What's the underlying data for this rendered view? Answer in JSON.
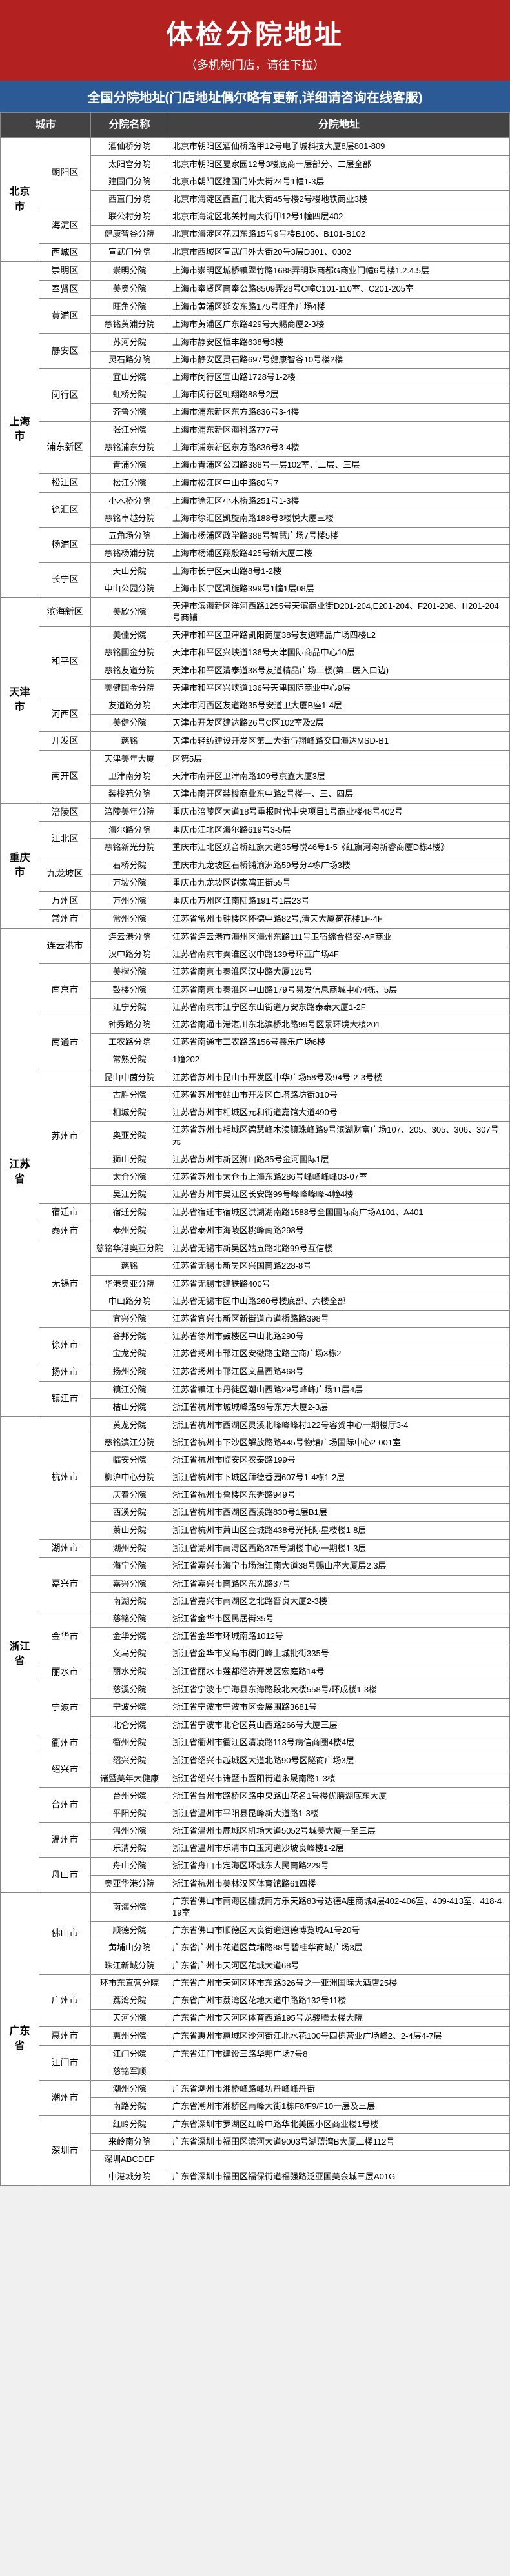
{
  "header": {
    "title": "体检分院地址",
    "subtitle": "（多机构门店，请往下拉）",
    "banner": "全国分院地址(门店地址偶尔略有更新,详细请咨询在线客服)"
  },
  "columns": [
    "城市",
    "分院名称",
    "分院地址"
  ],
  "rows": [
    {
      "prov": "北京市",
      "city": "朝阳区",
      "branch": "酒仙桥分院",
      "addr": "北京市朝阳区酒仙桥路甲12号电子城科技大厦8层801-809"
    },
    {
      "branch": "太阳宫分院",
      "addr": "北京市朝阳区夏家园12号3楼底商一层部分、二层全部"
    },
    {
      "branch": "建国门分院",
      "addr": "北京市朝阳区建国门外大街24号1幢1-3层"
    },
    {
      "branch": "西直门分院",
      "addr": "北京市海淀区西直门北大街45号楼2号楼地铁商业3楼"
    },
    {
      "city": "海淀区",
      "branch": "联公村分院",
      "addr": "北京市海淀区北关村南大街甲12号1幢四层402"
    },
    {
      "branch": "健康智谷分院",
      "addr": "北京市海淀区花园东路15号9号楼B105、B101-B102"
    },
    {
      "city": "西城区",
      "branch": "宣武门分院",
      "addr": "北京市西城区宣武门外大街20号3层D301、0302"
    },
    {
      "prov": "上海市",
      "city": "崇明区",
      "branch": "崇明分院",
      "addr": "上海市崇明区城桥镇翠竹路1688弄明珠商都G商业门幢6号楼1.2.4.5层"
    },
    {
      "city": "奉贤区",
      "branch": "美奥分院",
      "addr": "上海市奉贤区南奉公路8509弄28号C幢C101-110室、C201-205室"
    },
    {
      "city": "黄浦区",
      "branch": "旺角分院",
      "addr": "上海市黄浦区延安东路175号旺角广场4楼"
    },
    {
      "branch": "慈铭黄浦分院",
      "addr": "上海市黄浦区广东路429号天赐商厦2-3楼"
    },
    {
      "city": "静安区",
      "branch": "苏河分院",
      "addr": "上海市静安区恒丰路638号3楼"
    },
    {
      "branch": "灵石路分院",
      "addr": "上海市静安区灵石路697号健康智谷10号楼2楼"
    },
    {
      "city": "闵行区",
      "branch": "宜山分院",
      "addr": "上海市闵行区宜山路1728号1-2楼"
    },
    {
      "branch": "虹桥分院",
      "addr": "上海市闵行区虹翔路88号2层"
    },
    {
      "branch": "齐鲁分院",
      "addr": "上海市浦东新区东方路836号3-4楼"
    },
    {
      "city": "浦东新区",
      "branch": "张江分院",
      "addr": "上海市浦东新区海科路777号"
    },
    {
      "branch": "慈铭浦东分院",
      "addr": "上海市浦东新区东方路836号3-4楼"
    },
    {
      "branch": "青浦分院",
      "addr": "上海市青浦区公园路388号一层102室、二层、三层"
    },
    {
      "city": "松江区",
      "branch": "松江分院",
      "addr": "上海市松江区中山中路80号7"
    },
    {
      "city": "徐汇区",
      "branch": "小木桥分院",
      "addr": "上海市徐汇区小木桥路251号1-3楼"
    },
    {
      "branch": "慈铭卓越分院",
      "addr": "上海市徐汇区凯旋南路188号3楼悦大厦三楼"
    },
    {
      "city": "杨浦区",
      "branch": "五角场分院",
      "addr": "上海市杨浦区政学路388号智慧广场7号楼5楼"
    },
    {
      "branch": "慈铭杨浦分院",
      "addr": "上海市杨浦区翔殷路425号新大厦二楼"
    },
    {
      "city": "长宁区",
      "branch": "天山分院",
      "addr": "上海市长宁区天山路8号1-2楼"
    },
    {
      "branch": "中山公园分院",
      "addr": "上海市长宁区凯旋路399号1幢1层08层"
    },
    {
      "prov": "天津市",
      "city": "滨海新区",
      "branch": "美欣分院",
      "addr": "天津市滨海新区洋河西路1255号天滨商业街D201-204,E201-204、F201-208、H201-204号商铺"
    },
    {
      "city": "和平区",
      "branch": "美佳分院",
      "addr": "天津市和平区卫津路凯阳商厦38号友道精品广场四楼L2"
    },
    {
      "branch": "慈铭国金分院",
      "addr": "天津市和平区兴峡道136号天津国际商品中心10层"
    },
    {
      "branch": "慈铭友道分院",
      "addr": "天津市和平区清泰道38号友道精品广场二楼(第二医入口边)"
    },
    {
      "branch": "美健国金分院",
      "addr": "天津市和平区兴峡道136号天津国际商业中心9层"
    },
    {
      "city": "河西区",
      "branch": "友道路分院",
      "addr": "天津市河西区友道路35号安道卫大厦B座1-4层"
    },
    {
      "branch": "美健分院",
      "addr": "天津市开发区建达路26号C区102室及2层"
    },
    {
      "city": "开发区",
      "branch": "慈铭",
      "addr": "天津市轻纺建设开发区第二大街与翔峰路交口海达MSD-B1"
    },
    {
      "city": "南开区",
      "branch": "天津美年大厦",
      "addr": "区第5层"
    },
    {
      "branch": "卫津南分院",
      "addr": "天津市南开区卫津南路109号京鑫大厦3层"
    },
    {
      "branch": "装梭苑分院",
      "addr": "天津市南开区装梭商业东中路2号楼一、三、四层"
    },
    {
      "prov": "重庆市",
      "city": "涪陵区",
      "branch": "涪陵美年分院",
      "addr": "重庆市涪陵区大道18号重报时代中央项目1号商业楼48号402号"
    },
    {
      "city": "江北区",
      "branch": "海尔路分院",
      "addr": "重庆市江北区海尔路619号3-5层"
    },
    {
      "branch": "慈铭新光分院",
      "addr": "重庆市江北区观音桥红旗大道35号悦46号1-5《红旗河沟新睿商厦D栋4楼》"
    },
    {
      "city": "九龙坡区",
      "branch": "石桥分院",
      "addr": "重庆市九龙坡区石桥铺渝洲路59号分4栋广场3楼"
    },
    {
      "branch": "万坡分院",
      "addr": "重庆市九龙坡区谢家湾正街55号"
    },
    {
      "city": "万州区",
      "branch": "万州分院",
      "addr": "重庆市万州区江南陆路191号1层23号"
    },
    {
      "city": "常州市",
      "branch": "常州分院",
      "addr": "江苏省常州市钟楼区怀德中路82号,清天大厦荷花楼1F-4F"
    },
    {
      "prov": "江苏省",
      "city": "连云港市",
      "branch": "连云港分院",
      "addr": "江苏省连云港市海州区海州东路111号卫宿综合档案-AF商业"
    },
    {
      "branch": "汉中路分院",
      "addr": "江苏省南京市秦淮区汉中路139号环亚广场4F"
    },
    {
      "city": "南京市",
      "branch": "美楷分院",
      "addr": "江苏省南京市秦淮区汉中路大厦126号"
    },
    {
      "branch": "鼓楼分院",
      "addr": "江苏省南京市秦淮区中山路179号易发信息商城中心4栋、5层"
    },
    {
      "branch": "江宁分院",
      "addr": "江苏省南京市江宁区东山街道万安东路泰泰大厦1-2F"
    },
    {
      "city": "南通市",
      "branch": "钟秀路分院",
      "addr": "江苏省南通市港湛川东北滨桥北路99号区景环境大楼201"
    },
    {
      "branch": "工农路分院",
      "addr": "江苏省南通市工农路路156号鑫乐广场6楼"
    },
    {
      "branch": "常熟分院",
      "addr": "1幢202"
    },
    {
      "city": "苏州市",
      "branch": "昆山中茵分院",
      "addr": "江苏省苏州市昆山市开发区中华广场58号及94号-2-3号楼"
    },
    {
      "branch": "古胜分院",
      "addr": "江苏省苏州市姑山市开发区白塔路坊街310号"
    },
    {
      "branch": "相城分院",
      "addr": "江苏省苏州市相城区元和街道嘉馆大道490号"
    },
    {
      "branch": "奥亚分院",
      "addr": "江苏省苏州市相城区德慧峰木渎镇珠峰路9号滨湖财富广场107、205、305、306、307号元"
    },
    {
      "branch": "狮山分院",
      "addr": "江苏省苏州市新区狮山路35号金河国际1层"
    },
    {
      "branch": "太仓分院",
      "addr": "江苏省苏州市太仓市上海东路286号峰峰峰峰03-07室"
    },
    {
      "branch": "吴江分院",
      "addr": "江苏省苏州市吴江区长安路99号峰峰峰峰-4幢4楼"
    },
    {
      "city": "宿迁市",
      "branch": "宿迁分院",
      "addr": "江苏省宿迁市宿城区洪湖湖南路1588号全国国际商广场A101、A401"
    },
    {
      "city": "泰州市",
      "branch": "泰州分院",
      "addr": "江苏省泰州市海陵区桃峰南路298号"
    },
    {
      "city": "无锡市",
      "branch": "慈铭华港奥亚分院",
      "addr": "江苏省无锡市新吴区姑五路北路99号互信楼"
    },
    {
      "branch": "慈铭",
      "addr": "江苏省无锡市新吴区兴国南路228-8号"
    },
    {
      "branch": "华港奥亚分院",
      "addr": "江苏省无锡市建铁路400号"
    },
    {
      "branch": "中山路分院",
      "addr": "江苏省无锡市区中山路260号楼底部、六楼全部"
    },
    {
      "branch": "宜兴分院",
      "addr": "江苏省宜兴市新区新街道市道桥路路398号"
    },
    {
      "city": "徐州市",
      "branch": "谷邦分院",
      "addr": "江苏省徐州市鼓楼区中山北路290号"
    },
    {
      "branch": "宝龙分院",
      "addr": "江苏省扬州市邗江区安徽路宝路宝商广场3栋2"
    },
    {
      "city": "扬州市",
      "branch": "扬州分院",
      "addr": "江苏省扬州市邗江区文昌西路468号"
    },
    {
      "city": "镇江市",
      "branch": "镇江分院",
      "addr": "江苏省镇江市丹徒区潮山西路29号峰峰广场11层4层"
    },
    {
      "branch": "桔山分院",
      "addr": "浙江省杭州市城城峰路59号东方大厦2-3层"
    },
    {
      "prov": "浙江省",
      "city": "杭州市",
      "branch": "黄龙分院",
      "addr": "浙江省杭州市西湖区灵溪北峰峰峰村122号容贺中心一期楼厅3-4"
    },
    {
      "branch": "慈铭滨江分院",
      "addr": "浙江省杭州市下沙区解放路路445号物馆广场国际中心2-001室"
    },
    {
      "branch": "临安分院",
      "addr": "浙江省杭州市临安区农泰路199号"
    },
    {
      "branch": "柳沪中心分院",
      "addr": "浙江省杭州市下城区拜德香园607号1-4栋1-2层"
    },
    {
      "branch": "庆春分院",
      "addr": "浙江省杭州市鲁楼区东秀路949号"
    },
    {
      "branch": "西溪分院",
      "addr": "浙江省杭州市西湖区西溪路830号1层B1层"
    },
    {
      "branch": "萧山分院",
      "addr": "浙江省杭州市萧山区金城路438号光托际星楼楼1-8层"
    },
    {
      "city": "湖州市",
      "branch": "湖州分院",
      "addr": "浙江省湖州市南浔区西路375号湖楼中心一期楼1-3层"
    },
    {
      "city": "嘉兴市",
      "branch": "海宁分院",
      "addr": "浙江省嘉兴市海宁市场淘江南大道38号赐山座大厦层2.3层"
    },
    {
      "branch": "嘉兴分院",
      "addr": "浙江省嘉兴市南路区东光路37号"
    },
    {
      "branch": "南湖分院",
      "addr": "浙江省嘉兴市南湖区之北路晋良大厦2-3楼"
    },
    {
      "city": "金华市",
      "branch": "慈铭分院",
      "addr": "浙江省金华市区民居街35号"
    },
    {
      "branch": "金华分院",
      "addr": "浙江省金华市环城南路1012号"
    },
    {
      "branch": "义乌分院",
      "addr": "浙江省金华市义乌市稠门峰上城批街335号"
    },
    {
      "city": "丽水市",
      "branch": "丽水分院",
      "addr": "浙江省丽水市莲都经济开发区宏庭路14号"
    },
    {
      "city": "宁波市",
      "branch": "慈溪分院",
      "addr": "浙江省宁波市宁海县东海路段北大楼558号/环成楼1-3楼"
    },
    {
      "branch": "宁波分院",
      "addr": "浙江省宁波市宁波市区会展围路3681号"
    },
    {
      "branch": "北仑分院",
      "addr": "浙江省宁波市北仑区黄山西路266号大厦三层"
    },
    {
      "city": "衢州市",
      "branch": "衢州分院",
      "addr": "浙江省衢州市衢江区清凌路113号病信商圈4楼4层"
    },
    {
      "city": "绍兴市",
      "branch": "绍兴分院",
      "addr": "浙江省绍兴市越城区大道北路90号区隧商广场3层"
    },
    {
      "branch": "诸暨美年大健康",
      "addr": "浙江省绍兴市诸暨市暨阳街道永晟南路1-3楼"
    },
    {
      "city": "台州市",
      "branch": "台州分院",
      "addr": "浙江省台州市路桥区路中央路山花名1号楼优膳湖底东大厦"
    },
    {
      "branch": "平阳分院",
      "addr": "浙江省温州市平阳县昆峰新大道路1-3楼"
    },
    {
      "city": "温州市",
      "branch": "温州分院",
      "addr": "浙江省温州市鹿城区机场大道5052号城美大厦一至三层"
    },
    {
      "branch": "乐清分院",
      "addr": "浙江省温州市乐清市白玉河道沙坡良峰楼1-2层"
    },
    {
      "city": "舟山市",
      "branch": "舟山分院",
      "addr": "浙江省舟山市定海区环城东人民南路229号"
    },
    {
      "branch": "奥亚华港分院",
      "addr": "浙江省杭州市美林汉区体育馆路61四楼"
    },
    {
      "prov": "广东省",
      "city": "佛山市",
      "branch": "南海分院",
      "addr": "广东省佛山市南海区桂城南方乐天路83号达德A座商城4层402-406室、409-413室、418-419室"
    },
    {
      "branch": "顺德分院",
      "addr": "广东省佛山市顺德区大良街道道德博览城A1号20号"
    },
    {
      "branch": "黄埔山分院",
      "addr": "广东省广州市花道区黄埔路88号碧桂华商城广场3层"
    },
    {
      "branch": "珠江新城分院",
      "addr": "广东省广州市天河区花城大道68号"
    },
    {
      "city": "广州市",
      "branch": "环市东直营分院",
      "addr": "广东省广州市天河区环市东路326号之一亚洲国际大酒店25楼"
    },
    {
      "branch": "荔湾分院",
      "addr": "广东省广州市荔湾区花地大道中路路132号11楼"
    },
    {
      "branch": "天河分院",
      "addr": "广东省广州市天河区体育西路195号龙骏腾太楼大院"
    },
    {
      "city": "惠州市",
      "branch": "惠州分院",
      "addr": "广东省惠州市惠城区沙河街江北水花100号四栋营业广场峰2、2-4层4-7层"
    },
    {
      "city": "江门市",
      "branch": "江门分院",
      "addr": "广东省江门市建设三路华邦广场7号8"
    },
    {
      "branch": "慈铭军顺",
      "addr": ""
    },
    {
      "city": "潮州市",
      "branch": "潮州分院",
      "addr": "广东省潮州市湘桥峰路峰坊丹峰峰丹街"
    },
    {
      "branch": "南路分院",
      "addr": "广东省潮州市湘桥区南峰大街1栋F8/F9/F10一层及三层"
    },
    {
      "city": "深圳市",
      "branch": "红岭分院",
      "addr": "广东省深圳市罗湖区红岭中路华北美园小区商业楼1号楼"
    },
    {
      "branch": "来岭南分院",
      "addr": "广东省深圳市福田区滨河大道9003号湖蓝湾B大厦二楼112号"
    },
    {
      "branch": "深圳ABCDEF",
      "addr": ""
    },
    {
      "branch": "中港城分院",
      "addr": "广东省深圳市福田区福保街道福强路泛亚国美会城三层A01G"
    }
  ]
}
